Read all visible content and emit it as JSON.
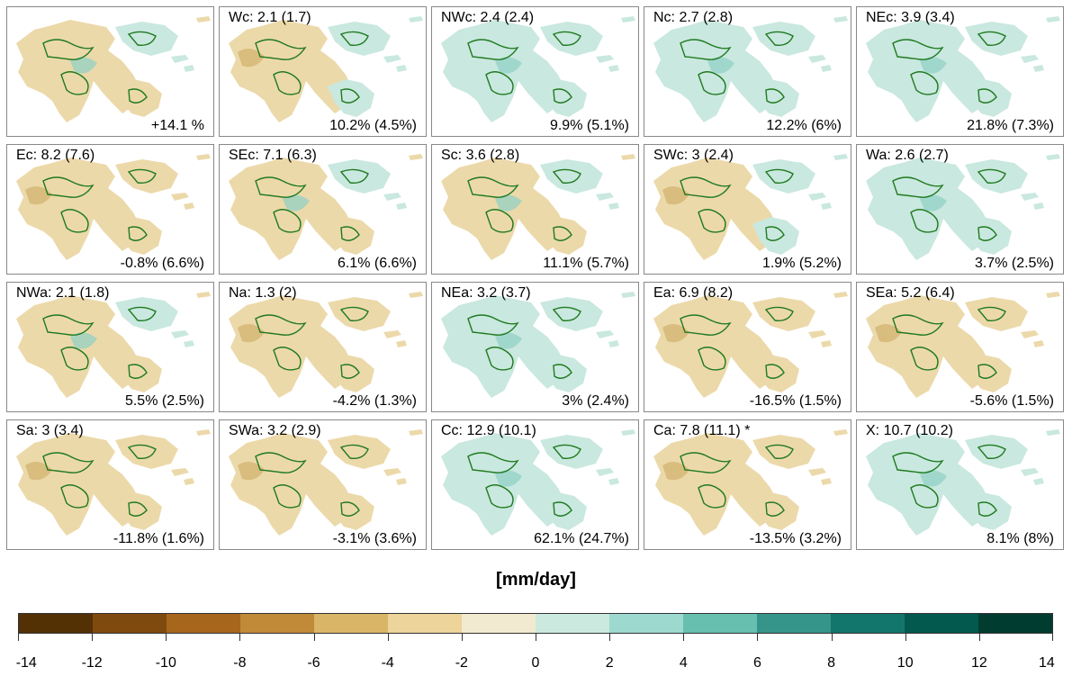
{
  "panels": [
    {
      "title": "",
      "stat": "+14.1 %",
      "base": "mix"
    },
    {
      "title": "Wc: 2.1 (1.7)",
      "stat": "10.2% (4.5%)",
      "base": "drywest"
    },
    {
      "title": "NWc: 2.4 (2.4)",
      "stat": "9.9% (5.1%)",
      "base": "wet"
    },
    {
      "title": "Nc: 2.7 (2.8)",
      "stat": "12.2% (6%)",
      "base": "wet"
    },
    {
      "title": "NEc: 3.9 (3.4)",
      "stat": "21.8% (7.3%)",
      "base": "wet"
    },
    {
      "title": "Ec: 8.2 (7.6)",
      "stat": "-0.8% (6.6%)",
      "base": "dry"
    },
    {
      "title": "SEc: 7.1 (6.3)",
      "stat": "6.1% (6.6%)",
      "base": "mix"
    },
    {
      "title": "Sc: 3.6 (2.8)",
      "stat": "11.1% (5.7%)",
      "base": "mix"
    },
    {
      "title": "SWc: 3 (2.4)",
      "stat": "1.9% (5.2%)",
      "base": "drywest"
    },
    {
      "title": "Wa: 2.6 (2.7)",
      "stat": "3.7% (2.5%)",
      "base": "wet"
    },
    {
      "title": "NWa: 2.1 (1.8)",
      "stat": "5.5% (2.5%)",
      "base": "mix"
    },
    {
      "title": "Na: 1.3 (2)",
      "stat": "-4.2% (1.3%)",
      "base": "dry"
    },
    {
      "title": "NEa: 3.2 (3.7)",
      "stat": "3% (2.4%)",
      "base": "wet"
    },
    {
      "title": "Ea: 6.9 (8.2)",
      "stat": "-16.5% (1.5%)",
      "base": "dry"
    },
    {
      "title": "SEa: 5.2 (6.4)",
      "stat": "-5.6% (1.5%)",
      "base": "dry"
    },
    {
      "title": "Sa: 3 (3.4)",
      "stat": "-11.8% (1.6%)",
      "base": "dry"
    },
    {
      "title": "SWa: 3.2 (2.9)",
      "stat": "-3.1% (3.6%)",
      "base": "dry"
    },
    {
      "title": "Cc: 12.9 (10.1)",
      "stat": "62.1% (24.7%)",
      "base": "wet"
    },
    {
      "title": "Ca: 7.8 (11.1) *",
      "stat": "-13.5% (3.2%)",
      "base": "dry"
    },
    {
      "title": "X: 10.7 (10.2)",
      "stat": "8.1% (8%)",
      "base": "wet"
    }
  ],
  "colorbar": {
    "unit": "[mm/day]",
    "colors": [
      "#543005",
      "#7f4a0d",
      "#a6661c",
      "#c08a38",
      "#d9b567",
      "#ecd49a",
      "#f1ead0",
      "#cbe9df",
      "#9dd9cf",
      "#67bfb0",
      "#35958b",
      "#12766c",
      "#04594e",
      "#003c30"
    ],
    "ticks": [
      "-14",
      "-12",
      "-10",
      "-8",
      "-6",
      "-4",
      "-2",
      "0",
      "2",
      "4",
      "6",
      "8",
      "10",
      "12",
      "14"
    ]
  },
  "palette": {
    "dry": "#ecd9aa",
    "dry_dark": "#d2b06b",
    "wet": "#c9e8df",
    "wet_dark": "#8fd0c4",
    "contour": "#1f7a1f"
  }
}
